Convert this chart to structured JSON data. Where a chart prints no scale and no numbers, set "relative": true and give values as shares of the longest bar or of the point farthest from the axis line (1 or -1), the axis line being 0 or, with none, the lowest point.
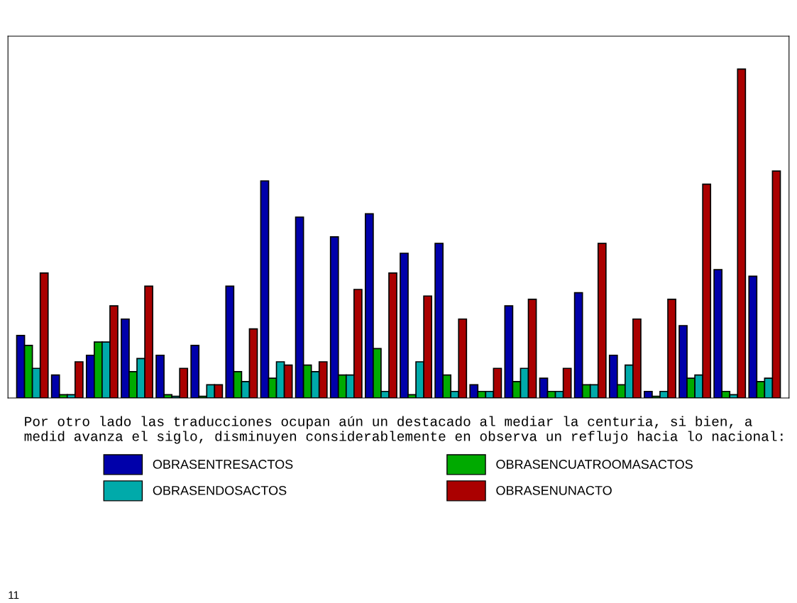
{
  "chart_data": {
    "type": "bar",
    "relative": true,
    "categories": [
      null,
      null,
      null,
      null,
      null,
      null,
      null,
      null,
      null,
      null,
      null,
      null,
      null,
      null,
      null,
      null,
      null,
      null,
      null,
      null,
      null,
      null
    ],
    "series": [
      {
        "name": "OBRASENTRESACTOS",
        "color": "#0000aa",
        "values": [
          0.19,
          0.07,
          0.13,
          0.24,
          0.13,
          0.16,
          0.34,
          0.66,
          0.55,
          0.49,
          0.56,
          0.44,
          0.47,
          0.04,
          0.28,
          0.06,
          0.32,
          0.13,
          0.02,
          0.22,
          0.39,
          0.37
        ]
      },
      {
        "name": "OBRASENCUATROOMASACTOS",
        "color": "#00aa00",
        "values": [
          0.16,
          0.01,
          0.17,
          0.08,
          0.01,
          0.005,
          0.08,
          0.06,
          0.1,
          0.07,
          0.15,
          0.01,
          0.07,
          0.02,
          0.05,
          0.02,
          0.04,
          0.04,
          0.005,
          0.06,
          0.02,
          0.05
        ]
      },
      {
        "name": "OBRASENDOSACTOS",
        "color": "#00aaaa",
        "values": [
          0.09,
          0.01,
          0.17,
          0.12,
          0.005,
          0.04,
          0.05,
          0.11,
          0.08,
          0.07,
          0.02,
          0.11,
          0.02,
          0.02,
          0.09,
          0.02,
          0.04,
          0.1,
          0.02,
          0.07,
          0.01,
          0.06
        ]
      },
      {
        "name": "OBRASENUNACTO",
        "color": "#aa0000",
        "values": [
          0.38,
          0.11,
          0.28,
          0.34,
          0.09,
          0.04,
          0.21,
          0.1,
          0.11,
          0.33,
          0.38,
          0.31,
          0.24,
          0.09,
          0.3,
          0.09,
          0.47,
          0.24,
          0.3,
          0.65,
          1,
          0.69
        ]
      }
    ],
    "legend": "bottom",
    "annotations": [
      "Por otro lado las traducciones ocupan aún un destacado al mediar la centuria, si bien, a medid avanza el siglo, disminuyen considerablemente en observa un reflujo hacia lo nacional:",
      "11"
    ]
  }
}
